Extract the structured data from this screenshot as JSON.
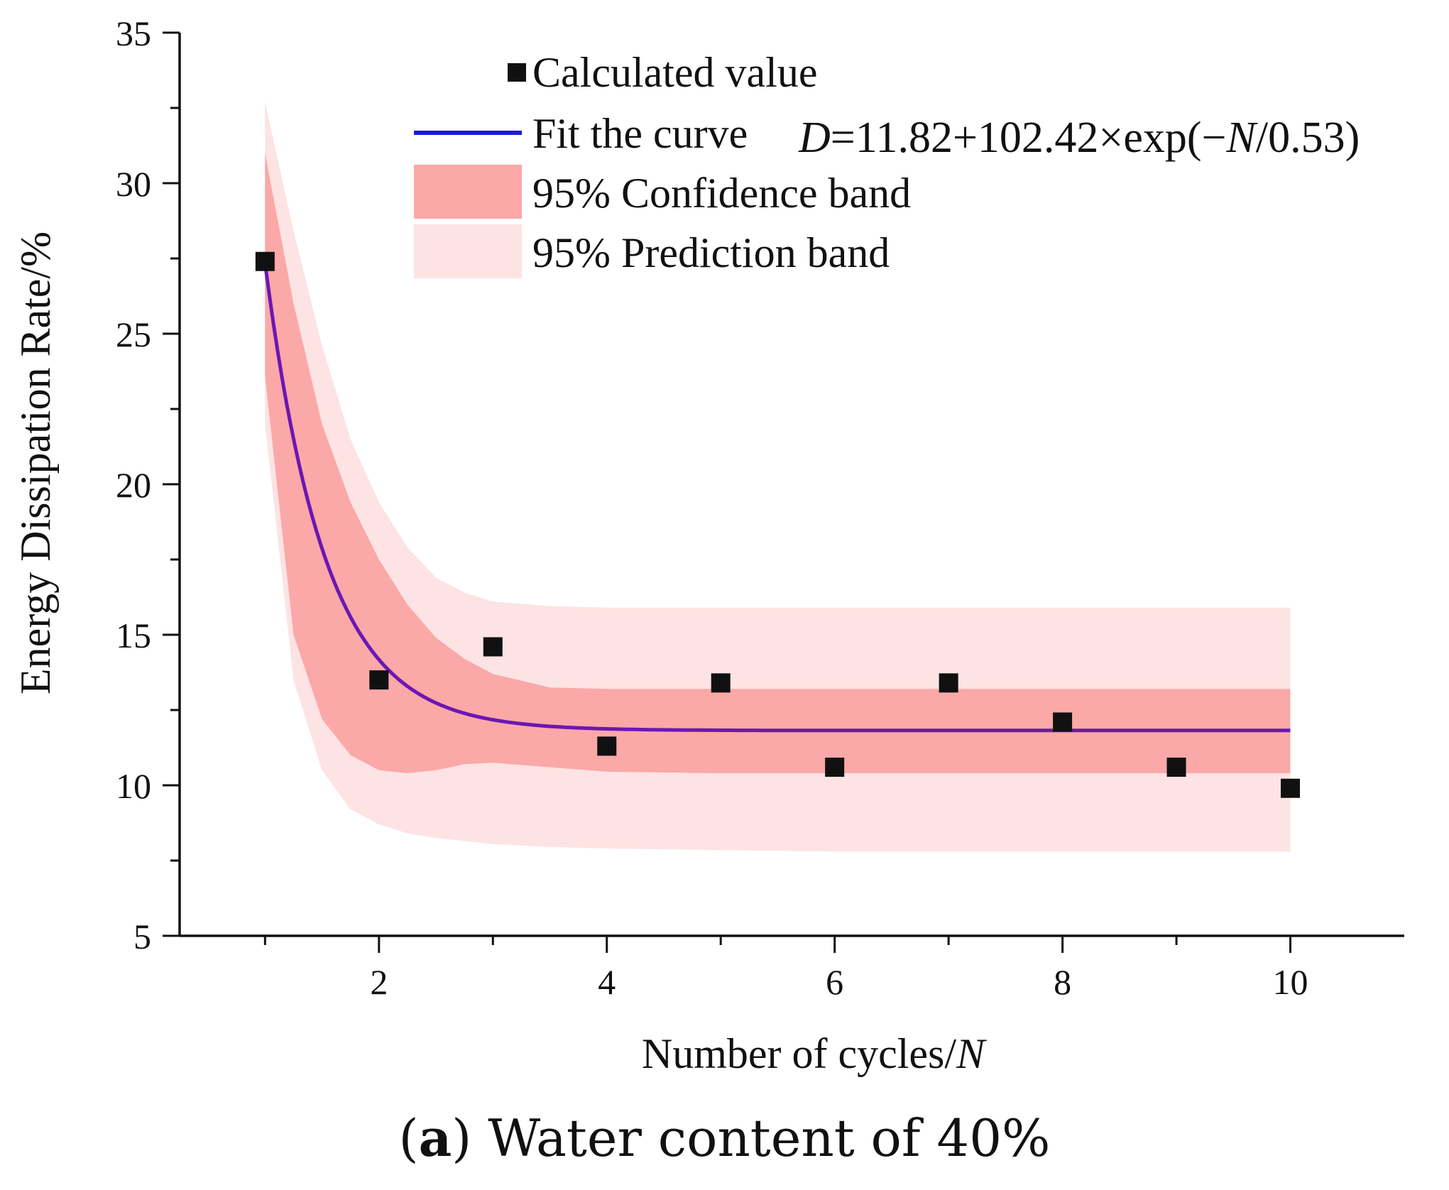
{
  "chart_data": {
    "type": "scatter",
    "xlabel_text": "Number of cycles/",
    "xlabel_var": "N",
    "ylabel": "Energy Dissipation Rate/%",
    "xlim": [
      0.25,
      11
    ],
    "ylim": [
      5,
      35
    ],
    "x_ticks": [
      2,
      4,
      6,
      8,
      10
    ],
    "x_minor_ticks": [
      1,
      3,
      5,
      7,
      9
    ],
    "y_ticks": [
      5,
      10,
      15,
      20,
      25,
      30,
      35
    ],
    "grid": false,
    "legend_position": "top-right",
    "series": [
      {
        "name": "Calculated value",
        "marker": "square",
        "x": [
          1,
          2,
          3,
          4,
          5,
          6,
          7,
          8,
          9,
          10
        ],
        "y": [
          27.4,
          13.5,
          14.6,
          11.3,
          13.4,
          10.6,
          13.4,
          12.1,
          10.6,
          9.9
        ]
      }
    ],
    "fit": {
      "legend_label": "Fit the curve",
      "equation_var": "D",
      "equation_mid": "=11.82+102.42×exp(−",
      "equation_var2": "N",
      "equation_end": "/0.53)",
      "a": 11.82,
      "b": 102.42,
      "t": 0.53,
      "x_range": [
        1,
        10
      ]
    },
    "bands": {
      "confidence_label": "95% Confidence band",
      "prediction_label": "95% Prediction band",
      "x": [
        1,
        1.25,
        1.5,
        1.75,
        2,
        2.25,
        2.5,
        2.75,
        3,
        3.5,
        4,
        5,
        6,
        7,
        8,
        9,
        10
      ],
      "confidence_upper": [
        31.0,
        26.0,
        22.0,
        19.4,
        17.5,
        16.0,
        14.9,
        14.2,
        13.7,
        13.25,
        13.2,
        13.2,
        13.2,
        13.2,
        13.2,
        13.2,
        13.2
      ],
      "confidence_lower": [
        23.6,
        15.0,
        12.2,
        11.0,
        10.5,
        10.4,
        10.5,
        10.7,
        10.75,
        10.6,
        10.45,
        10.4,
        10.4,
        10.4,
        10.4,
        10.4,
        10.4
      ],
      "prediction_upper": [
        32.7,
        28.4,
        24.6,
        21.5,
        19.4,
        17.9,
        16.9,
        16.4,
        16.1,
        15.95,
        15.9,
        15.9,
        15.9,
        15.9,
        15.9,
        15.9,
        15.9
      ],
      "prediction_lower": [
        22.0,
        13.5,
        10.5,
        9.2,
        8.7,
        8.4,
        8.25,
        8.15,
        8.05,
        7.95,
        7.9,
        7.85,
        7.8,
        7.8,
        7.8,
        7.8,
        7.8
      ]
    },
    "colors": {
      "confidence_band": "#fba8a8",
      "prediction_band": "#fde3e3",
      "fit_line": "#6b17b3",
      "legend_fit_line": "#1a1ad6",
      "marker": "#111111",
      "marker_in_band": "#5a0a0a",
      "axis": "#111111"
    }
  },
  "caption": {
    "panel_letter": "a",
    "text": " Water content of 40%"
  }
}
